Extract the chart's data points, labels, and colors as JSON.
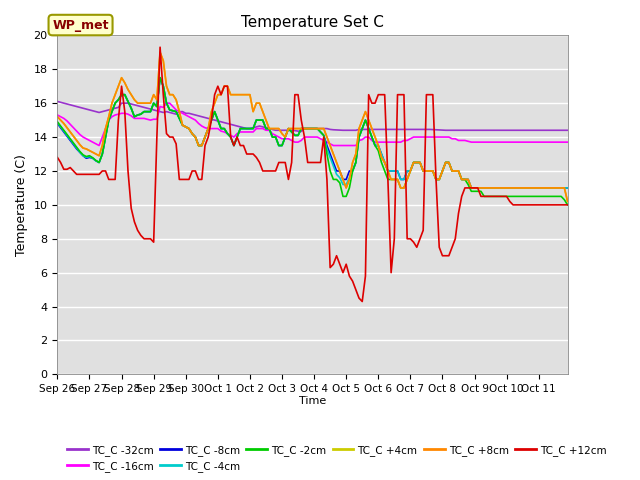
{
  "title": "Temperature Set C",
  "xlabel": "Time",
  "ylabel": "Temperature (C)",
  "ylim": [
    0,
    20
  ],
  "bg_color": "#e0e0e0",
  "annotation_label": "WP_met",
  "annotation_bg": "#ffffcc",
  "annotation_border": "#999900",
  "series_order": [
    "TC_C -32cm",
    "TC_C -16cm",
    "TC_C -8cm",
    "TC_C -4cm",
    "TC_C -2cm",
    "TC_C +4cm",
    "TC_C +8cm",
    "TC_C +12cm"
  ],
  "series": {
    "TC_C -32cm": {
      "color": "#9933cc"
    },
    "TC_C -16cm": {
      "color": "#ff00ff"
    },
    "TC_C -8cm": {
      "color": "#0000dd"
    },
    "TC_C -4cm": {
      "color": "#00cccc"
    },
    "TC_C -2cm": {
      "color": "#00cc00"
    },
    "TC_C +4cm": {
      "color": "#cccc00"
    },
    "TC_C +8cm": {
      "color": "#ff8800"
    },
    "TC_C +12cm": {
      "color": "#dd0000"
    }
  },
  "data": {
    "TC_C -32cm": [
      16.1,
      16.05,
      16.0,
      15.95,
      15.9,
      15.85,
      15.8,
      15.75,
      15.7,
      15.65,
      15.6,
      15.55,
      15.5,
      15.45,
      15.5,
      15.55,
      15.6,
      15.65,
      15.7,
      15.75,
      16.0,
      16.0,
      16.0,
      15.95,
      15.9,
      15.85,
      15.8,
      15.75,
      15.7,
      15.65,
      15.6,
      15.55,
      15.5,
      15.45,
      15.5,
      15.45,
      15.4,
      15.35,
      15.5,
      15.5,
      15.4,
      15.4,
      15.35,
      15.3,
      15.25,
      15.2,
      15.15,
      15.1,
      15.05,
      15.0,
      14.95,
      14.9,
      14.85,
      14.8,
      14.75,
      14.7,
      14.65,
      14.6,
      14.55,
      14.5,
      14.5,
      14.55,
      14.6,
      14.65,
      14.6,
      14.55,
      14.5,
      14.45,
      14.4,
      14.4,
      14.4,
      14.4,
      14.4,
      14.4,
      14.38,
      14.35,
      14.33,
      14.5,
      14.5,
      14.5,
      14.5,
      14.5,
      14.5,
      14.5,
      14.5,
      14.45,
      14.43,
      14.42,
      14.41,
      14.4,
      14.4,
      14.4,
      14.4,
      14.4,
      14.45,
      14.45,
      14.45,
      14.45,
      14.45,
      14.45,
      14.45,
      14.45,
      14.45,
      14.45,
      14.45,
      14.45,
      14.45,
      14.45,
      14.45,
      14.45,
      14.45,
      14.45,
      14.45,
      14.45,
      14.45,
      14.45,
      14.45,
      14.44,
      14.43,
      14.42,
      14.41,
      14.4,
      14.4,
      14.4,
      14.4,
      14.4,
      14.4,
      14.4,
      14.4,
      14.4,
      14.4,
      14.4,
      14.4,
      14.4,
      14.4,
      14.4,
      14.4,
      14.4,
      14.4,
      14.4,
      14.4,
      14.4,
      14.4,
      14.4,
      14.4,
      14.4,
      14.4,
      14.4,
      14.4,
      14.4,
      14.4,
      14.4,
      14.4,
      14.4,
      14.4,
      14.4,
      14.4,
      14.4,
      14.4,
      14.4
    ],
    "TC_C -16cm": [
      15.3,
      15.2,
      15.1,
      14.95,
      14.75,
      14.55,
      14.35,
      14.15,
      14.0,
      13.9,
      13.8,
      13.7,
      13.6,
      13.5,
      14.0,
      14.5,
      15.0,
      15.2,
      15.3,
      15.35,
      15.4,
      15.4,
      15.35,
      15.25,
      15.1,
      15.1,
      15.1,
      15.1,
      15.05,
      15.0,
      15.05,
      15.05,
      15.8,
      15.75,
      16.0,
      16.0,
      15.8,
      15.6,
      15.5,
      15.4,
      15.3,
      15.2,
      15.1,
      15.0,
      14.8,
      14.65,
      14.55,
      14.5,
      14.5,
      14.5,
      14.5,
      14.35,
      14.3,
      14.2,
      14.1,
      14.0,
      14.2,
      14.3,
      14.3,
      14.3,
      14.3,
      14.3,
      14.5,
      14.5,
      14.5,
      14.4,
      14.4,
      14.2,
      14.1,
      14.0,
      13.9,
      13.9,
      13.9,
      13.8,
      13.7,
      13.7,
      13.8,
      14.0,
      14.0,
      14.0,
      14.0,
      14.0,
      13.9,
      13.8,
      13.7,
      13.6,
      13.5,
      13.5,
      13.5,
      13.5,
      13.5,
      13.5,
      13.5,
      13.5,
      13.8,
      13.85,
      14.0,
      14.0,
      13.8,
      13.7,
      13.7,
      13.7,
      13.7,
      13.7,
      13.7,
      13.7,
      13.7,
      13.7,
      13.8,
      13.8,
      13.9,
      14.0,
      14.0,
      14.0,
      14.0,
      14.0,
      14.0,
      14.0,
      14.0,
      14.0,
      14.0,
      14.0,
      14.0,
      13.9,
      13.9,
      13.8,
      13.8,
      13.8,
      13.75,
      13.7,
      13.7,
      13.7,
      13.7,
      13.7,
      13.7,
      13.7,
      13.7,
      13.7,
      13.7,
      13.7,
      13.7,
      13.7,
      13.7,
      13.7,
      13.7,
      13.7,
      13.7,
      13.7,
      13.7,
      13.7,
      13.7,
      13.7,
      13.7,
      13.7,
      13.7,
      13.7,
      13.7,
      13.7,
      13.7,
      13.7
    ],
    "TC_C -8cm": [
      14.8,
      14.55,
      14.3,
      14.05,
      13.8,
      13.55,
      13.3,
      13.1,
      12.9,
      12.75,
      12.8,
      12.75,
      12.6,
      12.5,
      13.0,
      14.0,
      15.0,
      15.5,
      16.0,
      16.2,
      16.5,
      16.5,
      16.1,
      15.7,
      15.2,
      15.3,
      15.35,
      15.5,
      15.5,
      15.5,
      16.0,
      15.8,
      17.5,
      17.0,
      16.0,
      15.6,
      15.55,
      15.5,
      15.1,
      14.7,
      14.6,
      14.5,
      14.2,
      14.0,
      13.5,
      13.5,
      14.0,
      14.5,
      15.0,
      15.5,
      15.0,
      14.5,
      14.5,
      14.2,
      14.0,
      13.5,
      14.0,
      14.5,
      14.5,
      14.5,
      14.5,
      14.5,
      15.0,
      15.0,
      15.0,
      14.5,
      14.5,
      14.0,
      14.0,
      13.5,
      13.5,
      14.0,
      14.5,
      14.3,
      14.1,
      14.1,
      14.5,
      14.5,
      14.5,
      14.5,
      14.5,
      14.5,
      14.3,
      14.1,
      13.5,
      13.0,
      12.5,
      12.0,
      12.0,
      11.5,
      11.5,
      12.0,
      12.0,
      12.5,
      14.0,
      14.5,
      15.0,
      14.5,
      14.0,
      13.5,
      13.5,
      13.0,
      12.5,
      12.0,
      12.0,
      12.0,
      12.0,
      11.5,
      11.5,
      12.0,
      12.0,
      12.5,
      12.5,
      12.5,
      12.0,
      12.0,
      12.0,
      12.0,
      11.5,
      11.5,
      12.0,
      12.5,
      12.5,
      12.0,
      12.0,
      12.0,
      11.5,
      11.5,
      11.5,
      11.0,
      11.0,
      11.0,
      11.0,
      11.0,
      11.0,
      11.0,
      11.0,
      11.0,
      11.0,
      11.0,
      11.0,
      11.0,
      11.0,
      11.0,
      11.0,
      11.0,
      11.0,
      11.0,
      11.0,
      11.0,
      11.0,
      11.0,
      11.0,
      11.0,
      11.0,
      11.0,
      11.0,
      11.0,
      11.0,
      11.0
    ],
    "TC_C -4cm": [
      14.85,
      14.6,
      14.35,
      14.1,
      13.85,
      13.6,
      13.35,
      13.1,
      12.9,
      12.8,
      12.85,
      12.75,
      12.6,
      12.5,
      13.0,
      14.0,
      15.0,
      15.5,
      16.0,
      16.2,
      16.5,
      16.5,
      16.1,
      15.7,
      15.2,
      15.3,
      15.35,
      15.5,
      15.5,
      15.5,
      16.0,
      15.8,
      17.5,
      17.0,
      16.0,
      15.6,
      15.55,
      15.5,
      15.1,
      14.7,
      14.6,
      14.5,
      14.2,
      14.0,
      13.5,
      13.5,
      14.0,
      14.5,
      15.0,
      15.5,
      15.0,
      14.5,
      14.5,
      14.2,
      14.0,
      13.5,
      14.0,
      14.5,
      14.5,
      14.5,
      14.5,
      14.5,
      15.0,
      15.0,
      15.0,
      14.5,
      14.5,
      14.0,
      14.0,
      13.5,
      13.5,
      14.0,
      14.5,
      14.3,
      14.1,
      14.1,
      14.5,
      14.5,
      14.5,
      14.5,
      14.5,
      14.5,
      14.3,
      14.1,
      13.3,
      12.8,
      12.3,
      11.8,
      11.6,
      11.2,
      11.2,
      11.6,
      12.0,
      12.5,
      14.0,
      14.5,
      15.0,
      14.5,
      14.0,
      13.5,
      13.5,
      13.0,
      12.5,
      12.0,
      12.0,
      12.0,
      12.0,
      11.5,
      11.5,
      12.0,
      12.0,
      12.5,
      12.5,
      12.5,
      12.0,
      12.0,
      12.0,
      12.0,
      11.5,
      11.5,
      12.0,
      12.5,
      12.5,
      12.0,
      12.0,
      12.0,
      11.5,
      11.5,
      11.5,
      11.0,
      11.0,
      11.0,
      11.0,
      11.0,
      11.0,
      11.0,
      11.0,
      11.0,
      11.0,
      11.0,
      11.0,
      11.0,
      11.0,
      11.0,
      11.0,
      11.0,
      11.0,
      11.0,
      11.0,
      11.0,
      11.0,
      11.0,
      11.0,
      11.0,
      11.0,
      11.0,
      11.0,
      11.0,
      11.0,
      11.0
    ],
    "TC_C -2cm": [
      14.9,
      14.65,
      14.4,
      14.15,
      13.9,
      13.65,
      13.4,
      13.15,
      12.95,
      12.85,
      12.9,
      12.78,
      12.62,
      12.5,
      13.0,
      14.0,
      15.0,
      15.5,
      16.0,
      16.2,
      16.5,
      16.5,
      16.1,
      15.7,
      15.2,
      15.3,
      15.35,
      15.5,
      15.5,
      15.5,
      16.0,
      15.8,
      17.5,
      17.0,
      16.0,
      15.6,
      15.55,
      15.5,
      15.1,
      14.7,
      14.6,
      14.5,
      14.2,
      14.0,
      13.5,
      13.5,
      14.0,
      14.5,
      15.0,
      15.5,
      15.0,
      14.5,
      14.5,
      14.2,
      14.0,
      13.5,
      14.0,
      14.5,
      14.5,
      14.5,
      14.5,
      14.5,
      15.0,
      15.0,
      15.0,
      14.5,
      14.5,
      14.0,
      14.0,
      13.5,
      13.5,
      14.0,
      14.5,
      14.3,
      14.1,
      14.1,
      14.5,
      14.5,
      14.5,
      14.5,
      14.5,
      14.5,
      14.3,
      14.1,
      13.0,
      12.0,
      11.5,
      11.5,
      11.3,
      10.5,
      10.5,
      11.0,
      12.0,
      12.5,
      14.0,
      14.5,
      15.0,
      14.5,
      14.0,
      13.5,
      13.2,
      12.5,
      12.0,
      11.5,
      11.5,
      11.5,
      11.5,
      11.0,
      11.0,
      11.5,
      12.0,
      12.5,
      12.5,
      12.5,
      12.0,
      12.0,
      12.0,
      12.0,
      11.5,
      11.5,
      12.0,
      12.5,
      12.5,
      12.0,
      12.0,
      12.0,
      11.5,
      11.5,
      11.2,
      10.8,
      10.8,
      10.8,
      10.8,
      10.5,
      10.5,
      10.5,
      10.5,
      10.5,
      10.5,
      10.5,
      10.5,
      10.5,
      10.5,
      10.5,
      10.5,
      10.5,
      10.5,
      10.5,
      10.5,
      10.5,
      10.5,
      10.5,
      10.5,
      10.5,
      10.5,
      10.5,
      10.5,
      10.5,
      10.3,
      10.0
    ],
    "TC_C +4cm": [
      15.2,
      15.0,
      14.8,
      14.55,
      14.3,
      14.05,
      13.8,
      13.55,
      13.35,
      13.3,
      13.2,
      13.1,
      13.0,
      12.9,
      13.5,
      14.5,
      15.2,
      16.0,
      16.5,
      17.0,
      17.5,
      17.2,
      16.8,
      16.5,
      16.2,
      16.0,
      16.0,
      16.0,
      16.0,
      16.0,
      16.5,
      16.2,
      19.0,
      18.5,
      17.0,
      16.5,
      16.5,
      16.2,
      15.5,
      14.7,
      14.6,
      14.5,
      14.2,
      14.0,
      13.5,
      13.5,
      14.0,
      14.5,
      15.5,
      16.0,
      16.5,
      16.5,
      17.0,
      17.0,
      16.5,
      16.5,
      16.5,
      16.5,
      16.5,
      16.5,
      16.5,
      15.5,
      16.0,
      16.0,
      15.5,
      15.0,
      14.5,
      14.5,
      14.5,
      14.5,
      14.2,
      14.0,
      14.5,
      14.5,
      14.5,
      14.5,
      14.5,
      14.5,
      14.5,
      14.5,
      14.5,
      14.5,
      14.5,
      14.5,
      14.0,
      13.5,
      13.0,
      12.5,
      12.0,
      11.5,
      11.0,
      11.5,
      12.5,
      13.0,
      14.5,
      15.0,
      15.5,
      15.0,
      14.5,
      14.0,
      13.5,
      12.8,
      12.5,
      12.0,
      11.5,
      11.5,
      11.5,
      11.0,
      11.0,
      11.5,
      12.0,
      12.5,
      12.5,
      12.5,
      12.0,
      12.0,
      12.0,
      12.0,
      11.5,
      11.5,
      12.0,
      12.5,
      12.5,
      12.0,
      12.0,
      12.0,
      11.5,
      11.5,
      11.5,
      11.0,
      11.0,
      11.0,
      11.0,
      11.0,
      11.0,
      11.0,
      11.0,
      11.0,
      11.0,
      11.0,
      11.0,
      11.0,
      11.0,
      11.0,
      11.0,
      11.0,
      11.0,
      11.0,
      11.0,
      11.0,
      11.0,
      11.0,
      11.0,
      11.0,
      11.0,
      11.0,
      11.0,
      11.0,
      11.0,
      10.2
    ],
    "TC_C +8cm": [
      15.2,
      15.0,
      14.8,
      14.55,
      14.3,
      14.05,
      13.8,
      13.55,
      13.35,
      13.3,
      13.2,
      13.1,
      13.0,
      12.9,
      13.5,
      14.5,
      15.2,
      16.0,
      16.5,
      17.0,
      17.5,
      17.2,
      16.8,
      16.5,
      16.2,
      16.0,
      16.0,
      16.0,
      16.0,
      16.0,
      16.5,
      16.2,
      19.0,
      18.5,
      17.0,
      16.5,
      16.5,
      16.2,
      15.5,
      14.7,
      14.6,
      14.5,
      14.2,
      14.0,
      13.5,
      13.5,
      14.0,
      14.5,
      15.5,
      16.0,
      16.5,
      16.5,
      17.0,
      17.0,
      16.5,
      16.5,
      16.5,
      16.5,
      16.5,
      16.5,
      16.5,
      15.5,
      16.0,
      16.0,
      15.5,
      15.0,
      14.5,
      14.5,
      14.5,
      14.5,
      14.2,
      14.0,
      14.5,
      14.5,
      14.5,
      14.5,
      14.5,
      14.5,
      14.5,
      14.5,
      14.5,
      14.5,
      14.5,
      14.5,
      14.0,
      13.5,
      13.0,
      12.5,
      12.0,
      11.5,
      11.0,
      11.5,
      12.5,
      13.0,
      14.5,
      15.0,
      15.5,
      15.0,
      14.5,
      14.0,
      13.5,
      12.8,
      12.5,
      12.0,
      11.5,
      11.5,
      11.5,
      11.0,
      11.0,
      11.5,
      12.0,
      12.5,
      12.5,
      12.5,
      12.0,
      12.0,
      12.0,
      12.0,
      11.5,
      11.5,
      12.0,
      12.5,
      12.5,
      12.0,
      12.0,
      12.0,
      11.5,
      11.5,
      11.5,
      11.0,
      11.0,
      11.0,
      11.0,
      11.0,
      11.0,
      11.0,
      11.0,
      11.0,
      11.0,
      11.0,
      11.0,
      11.0,
      11.0,
      11.0,
      11.0,
      11.0,
      11.0,
      11.0,
      11.0,
      11.0,
      11.0,
      11.0,
      11.0,
      11.0,
      11.0,
      11.0,
      11.0,
      11.0,
      11.0,
      10.2
    ],
    "TC_C +12cm": [
      12.8,
      12.5,
      12.1,
      12.1,
      12.2,
      12.0,
      11.8,
      11.8,
      11.8,
      11.8,
      11.8,
      11.8,
      11.8,
      11.8,
      12.0,
      12.0,
      11.5,
      11.5,
      11.5,
      15.0,
      17.0,
      15.5,
      12.0,
      9.8,
      9.0,
      8.5,
      8.2,
      8.0,
      8.0,
      8.0,
      7.8,
      14.0,
      19.3,
      16.5,
      14.2,
      14.0,
      14.0,
      13.6,
      11.5,
      11.5,
      11.5,
      11.5,
      12.0,
      12.0,
      11.5,
      11.5,
      13.5,
      14.0,
      15.0,
      16.5,
      17.0,
      16.5,
      17.0,
      17.0,
      14.0,
      13.5,
      14.0,
      13.5,
      13.5,
      13.0,
      13.0,
      13.0,
      12.8,
      12.5,
      12.0,
      12.0,
      12.0,
      12.0,
      12.0,
      12.5,
      12.5,
      12.5,
      11.5,
      12.5,
      16.5,
      16.5,
      15.0,
      14.0,
      12.5,
      12.5,
      12.5,
      12.5,
      12.5,
      14.0,
      11.5,
      6.3,
      6.5,
      7.0,
      6.5,
      6.0,
      6.5,
      5.8,
      5.5,
      5.0,
      4.5,
      4.3,
      5.8,
      16.5,
      16.0,
      16.0,
      16.5,
      16.5,
      16.5,
      11.5,
      6.0,
      8.0,
      16.5,
      16.5,
      16.5,
      8.0,
      8.0,
      7.8,
      7.5,
      8.0,
      8.5,
      16.5,
      16.5,
      16.5,
      11.5,
      7.5,
      7.0,
      7.0,
      7.0,
      7.5,
      8.0,
      9.5,
      10.5,
      11.0,
      11.0,
      11.0,
      11.0,
      11.0,
      10.5,
      10.5,
      10.5,
      10.5,
      10.5,
      10.5,
      10.5,
      10.5,
      10.5,
      10.2,
      10.0,
      10.0,
      10.0,
      10.0,
      10.0,
      10.0,
      10.0,
      10.0,
      10.0,
      10.0,
      10.0,
      10.0,
      10.0,
      10.0,
      10.0,
      10.0,
      10.0,
      10.0
    ]
  },
  "xtick_labels": [
    "Sep 26",
    "Sep 27",
    "Sep 28",
    "Sep 29",
    "Sep 30",
    "Oct 1",
    "Oct 2",
    "Oct 3",
    "Oct 4",
    "Oct 5",
    "Oct 6",
    "Oct 7",
    "Oct 8",
    "Oct 9",
    "Oct 10",
    "Oct 11"
  ],
  "xtick_positions": [
    0,
    10,
    20,
    30,
    40,
    50,
    60,
    70,
    80,
    90,
    100,
    110,
    120,
    130,
    140,
    150
  ],
  "ytick_labels": [
    "0",
    "2",
    "4",
    "6",
    "8",
    "10",
    "12",
    "14",
    "16",
    "18",
    "20"
  ],
  "ytick_positions": [
    0,
    2,
    4,
    6,
    8,
    10,
    12,
    14,
    16,
    18,
    20
  ]
}
